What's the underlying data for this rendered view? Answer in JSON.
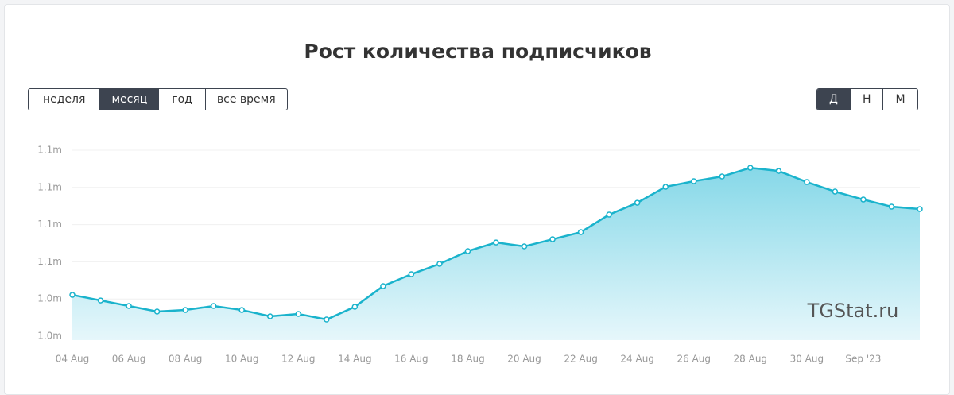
{
  "header": {
    "title": "Рост количества подписчиков"
  },
  "period_buttons": [
    "неделя",
    "месяц",
    "год",
    "все время"
  ],
  "granularity_buttons": [
    "Д",
    "Н",
    "М"
  ],
  "watermark": "TGStat.ru",
  "chart_data": {
    "type": "area",
    "categories": [
      "04 Aug",
      null,
      "06 Aug",
      null,
      "08 Aug",
      null,
      "10 Aug",
      null,
      "12 Aug",
      null,
      "14 Aug",
      null,
      "16 Aug",
      null,
      "18 Aug",
      null,
      "20 Aug",
      null,
      "22 Aug",
      null,
      "24 Aug",
      null,
      "26 Aug",
      null,
      "28 Aug",
      null,
      "30 Aug",
      null,
      "Sep '23",
      null,
      null
    ],
    "values": [
      1045550,
      1044800,
      1044060,
      1043310,
      1043520,
      1044060,
      1043520,
      1042670,
      1042990,
      1042240,
      1043950,
      1046730,
      1048330,
      1049720,
      1051430,
      1052600,
      1052070,
      1053030,
      1053990,
      1056340,
      1057940,
      1060080,
      1060830,
      1061470,
      1062640,
      1062210,
      1060720,
      1059440,
      1058370,
      1057410,
      1057090
    ],
    "color": "#1ab3cc",
    "ylim": [
      1040000,
      1065000
    ],
    "yticks": [
      {
        "value": 1040000,
        "label": "1.0m"
      },
      {
        "value": 1045000,
        "label": "1.0m"
      },
      {
        "value": 1050000,
        "label": "1.1m"
      },
      {
        "value": 1055000,
        "label": "1.1m"
      },
      {
        "value": 1060000,
        "label": "1.1m"
      },
      {
        "value": 1065000,
        "label": "1.1m"
      }
    ],
    "grid": true
  }
}
